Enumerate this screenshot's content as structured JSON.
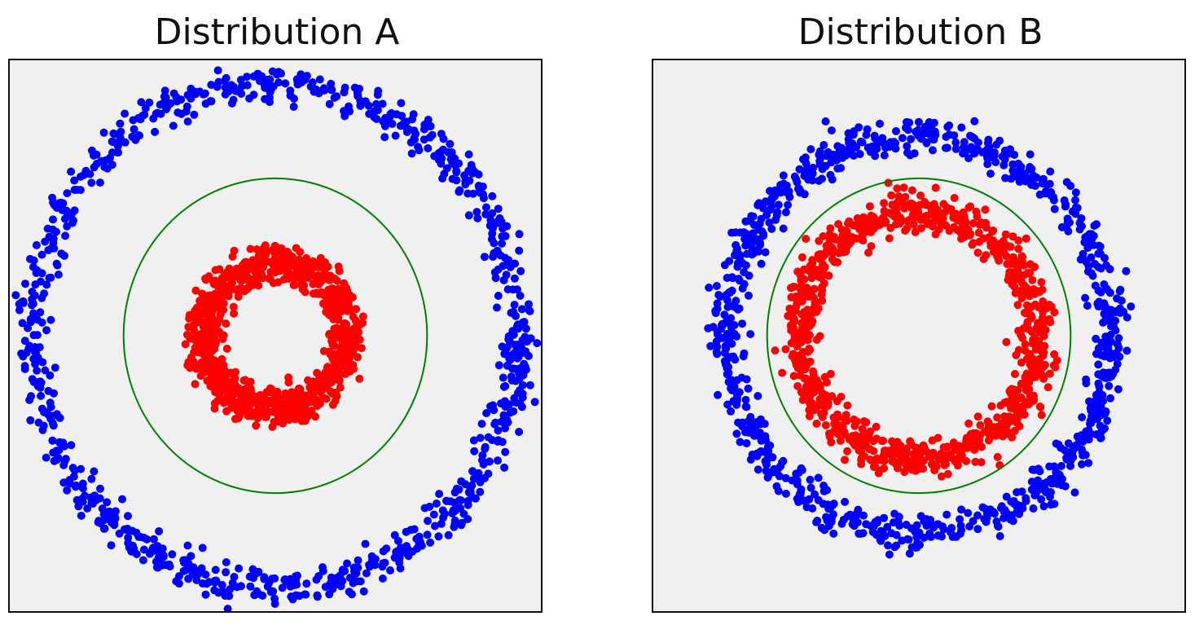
{
  "chart_data": [
    {
      "type": "scatter",
      "title": "Distribution A",
      "axes_visible": false,
      "background_color": "#f0f0f0",
      "xlim": [
        -1.05,
        1.05
      ],
      "ylim": [
        -1.05,
        1.05
      ],
      "series": [
        {
          "role": "outer-ring",
          "color": "#0000ff",
          "shape": "ring",
          "radius": 0.96,
          "noise": 0.035,
          "points": 900,
          "center": [
            0,
            0
          ]
        },
        {
          "role": "inner-ring",
          "color": "#ff0000",
          "shape": "ring",
          "radius": 0.28,
          "noise": 0.035,
          "points": 900,
          "center": [
            0,
            0
          ]
        }
      ],
      "decision_boundary": {
        "shape": "circle",
        "color": "#008000",
        "radius": 0.6,
        "center": [
          0,
          0
        ]
      }
    },
    {
      "type": "scatter",
      "title": "Distribution B",
      "axes_visible": false,
      "background_color": "#f0f0f0",
      "xlim": [
        -1.05,
        1.05
      ],
      "ylim": [
        -1.05,
        1.05
      ],
      "series": [
        {
          "role": "outer-ring",
          "color": "#0000ff",
          "shape": "ring",
          "radius": 0.76,
          "noise": 0.035,
          "points": 900,
          "center": [
            0,
            0
          ]
        },
        {
          "role": "inner-ring",
          "color": "#ff0000",
          "shape": "ring",
          "radius": 0.47,
          "noise": 0.035,
          "points": 900,
          "center": [
            0,
            0
          ]
        }
      ],
      "decision_boundary": {
        "shape": "circle",
        "color": "#008000",
        "radius": 0.6,
        "center": [
          0,
          0
        ]
      }
    }
  ]
}
